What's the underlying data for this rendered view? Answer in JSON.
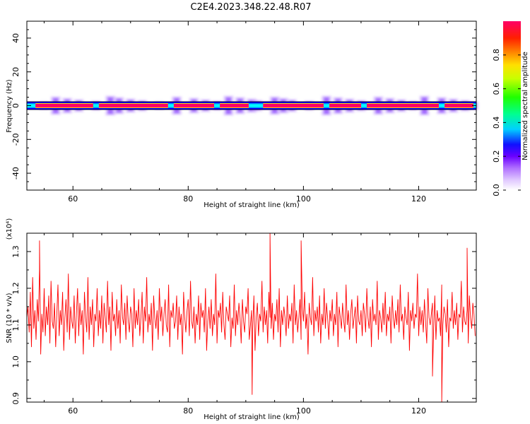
{
  "figure": {
    "title": "C2E4.2023.348.22.48.R07"
  },
  "chart_data": [
    {
      "type": "heatmap",
      "title": "C2E4.2023.348.22.48.R07",
      "xlabel": "Height of straight line (km)",
      "ylabel": "Frequency (Hz)",
      "xlim": [
        52,
        130
      ],
      "ylim": [
        -50,
        50
      ],
      "x_ticks": [
        60,
        80,
        100,
        120
      ],
      "y_ticks": [
        -40,
        -20,
        0,
        20,
        40
      ],
      "colorbar": {
        "label": "Normalized spectral amplitude",
        "range": [
          0,
          1
        ],
        "ticks": [
          0.0,
          0.2,
          0.4,
          0.6,
          0.8
        ],
        "colormap": [
          "#ffffff",
          "#cc99ff",
          "#7a00ff",
          "#0000ff",
          "#00ffff",
          "#00ff00",
          "#ffff00",
          "#ff8000",
          "#ff0000",
          "#ff0066"
        ]
      },
      "band_frequency": 0,
      "strong_segments_km": [
        [
          53.5,
          63.5
        ],
        [
          64.5,
          76.5
        ],
        [
          77.5,
          84.5
        ],
        [
          85.5,
          90.5
        ],
        [
          93,
          103.5
        ],
        [
          104.5,
          110
        ],
        [
          111,
          123.5
        ],
        [
          124.5,
          129.5
        ]
      ],
      "strong_segment_amplitude": 1.0,
      "weak_segment_amplitude": 0.4,
      "noise_peaks_km": [
        55,
        57,
        59,
        61,
        64,
        66.5,
        68,
        70,
        72,
        75,
        78,
        81,
        83,
        85,
        87,
        89,
        91,
        92,
        93.5,
        95,
        96.5,
        98,
        101,
        104,
        106,
        108,
        110,
        111.5,
        113,
        115,
        117,
        119,
        121,
        124,
        126,
        128,
        129.5
      ]
    },
    {
      "type": "line",
      "xlabel": "Height of straight line (km)",
      "ylabel": "SNR (10 * v/v)",
      "y_multiplier": "(x10⁴)",
      "xlim": [
        52,
        130
      ],
      "ylim": [
        0.89,
        1.35
      ],
      "x_ticks": [
        60,
        80,
        100,
        120
      ],
      "y_ticks": [
        0.9,
        1.0,
        1.1,
        1.2,
        1.3
      ],
      "color": "#ff0000",
      "x_start": 52,
      "x_step": 0.2,
      "spike_points": [
        [
          54.2,
          1.33
        ],
        [
          94.2,
          1.36
        ],
        [
          91.1,
          0.91
        ],
        [
          124.0,
          0.88
        ],
        [
          128.4,
          1.31
        ],
        [
          99.6,
          1.33
        ],
        [
          122.4,
          0.96
        ]
      ],
      "y": [
        1.12,
        1.15,
        1.08,
        1.19,
        1.04,
        1.23,
        1.09,
        1.14,
        1.06,
        1.17,
        1.11,
        1.25,
        1.02,
        1.13,
        1.08,
        1.2,
        1.07,
        1.15,
        1.1,
        1.18,
        1.05,
        1.22,
        1.11,
        1.09,
        1.16,
        1.04,
        1.13,
        1.21,
        1.07,
        1.14,
        1.1,
        1.19,
        1.03,
        1.12,
        1.17,
        1.08,
        1.24,
        1.06,
        1.15,
        1.11,
        1.09,
        1.18,
        1.05,
        1.13,
        1.2,
        1.07,
        1.16,
        1.1,
        1.14,
        1.02,
        1.19,
        1.12,
        1.08,
        1.23,
        1.06,
        1.15,
        1.1,
        1.17,
        1.04,
        1.13,
        1.11,
        1.2,
        1.07,
        1.14,
        1.09,
        1.18,
        1.05,
        1.16,
        1.12,
        1.08,
        1.22,
        1.1,
        1.15,
        1.03,
        1.19,
        1.11,
        1.13,
        1.07,
        1.17,
        1.09,
        1.14,
        1.05,
        1.21,
        1.12,
        1.1,
        1.16,
        1.06,
        1.18,
        1.11,
        1.08,
        1.15,
        1.13,
        1.04,
        1.2,
        1.09,
        1.14,
        1.1,
        1.17,
        1.07,
        1.12,
        1.19,
        1.05,
        1.15,
        1.11,
        1.23,
        1.08,
        1.13,
        1.1,
        1.16,
        1.03,
        1.18,
        1.12,
        1.09,
        1.14,
        1.06,
        1.2,
        1.11,
        1.15,
        1.07,
        1.13,
        1.17,
        1.1,
        1.08,
        1.21,
        1.04,
        1.14,
        1.12,
        1.16,
        1.09,
        1.11,
        1.18,
        1.06,
        1.15,
        1.1,
        1.13,
        1.02,
        1.19,
        1.12,
        1.08,
        1.14,
        1.17,
        1.07,
        1.22,
        1.11,
        1.09,
        1.15,
        1.05,
        1.13,
        1.1,
        1.18,
        1.06,
        1.16,
        1.12,
        1.14,
        1.08,
        1.2,
        1.03,
        1.11,
        1.15,
        1.09,
        1.17,
        1.07,
        1.13,
        1.1,
        1.24,
        1.05,
        1.14,
        1.12,
        1.16,
        1.08,
        1.19,
        1.1,
        1.06,
        1.15,
        1.13,
        1.11,
        1.18,
        1.04,
        1.12,
        1.09,
        1.21,
        1.07,
        1.14,
        1.1,
        1.16,
        1.12,
        1.05,
        1.17,
        1.11,
        1.08,
        1.15,
        1.13,
        1.2,
        1.06,
        1.1,
        1.14,
        1.09,
        1.18,
        1.03,
        1.12,
        1.16,
        1.07,
        1.13,
        1.11,
        1.22,
        1.08,
        1.15,
        1.1,
        1.14,
        1.05,
        1.19,
        1.12,
        1.09,
        1.16,
        1.06,
        1.13,
        1.11,
        1.17,
        1.08,
        1.2,
        1.04,
        1.14,
        1.1,
        1.15,
        1.12,
        1.07,
        1.18,
        1.09,
        1.13,
        1.11,
        1.16,
        1.05,
        1.21,
        1.1,
        1.14,
        1.08,
        1.12,
        1.17,
        1.06,
        1.15,
        1.11,
        1.19,
        1.09,
        1.13,
        1.02,
        1.16,
        1.12,
        1.1,
        1.23,
        1.07,
        1.14,
        1.11,
        1.15,
        1.08,
        1.18,
        1.05,
        1.13,
        1.1,
        1.2,
        1.09,
        1.16,
        1.12,
        1.06,
        1.14,
        1.11,
        1.17,
        1.07,
        1.13,
        1.1,
        1.19,
        1.04,
        1.15,
        1.12,
        1.09,
        1.16,
        1.11,
        1.08,
        1.21,
        1.1,
        1.14,
        1.06,
        1.13,
        1.17,
        1.09,
        1.12,
        1.15,
        1.05,
        1.18,
        1.11,
        1.1,
        1.14,
        1.07,
        1.16,
        1.13,
        1.08,
        1.2,
        1.12,
        1.09,
        1.15,
        1.04,
        1.17,
        1.11,
        1.13,
        1.1,
        1.22,
        1.06,
        1.14,
        1.12,
        1.08,
        1.16,
        1.1,
        1.19,
        1.07,
        1.13,
        1.11,
        1.15,
        1.05,
        1.18,
        1.12,
        1.09,
        1.14,
        1.1,
        1.17,
        1.08,
        1.21,
        1.11,
        1.13,
        1.06,
        1.15,
        1.12,
        1.1,
        1.19,
        1.03,
        1.14,
        1.11,
        1.16,
        1.09,
        1.13,
        1.12,
        1.24,
        1.07,
        1.15,
        1.1,
        1.14,
        1.08,
        1.17,
        1.11,
        1.05,
        1.2,
        1.12,
        1.1,
        1.13,
        1.16,
        1.09,
        1.18,
        1.06,
        1.14,
        1.11,
        1.12,
        1.07,
        1.21,
        1.1,
        1.15,
        1.13,
        1.08,
        1.17,
        1.04,
        1.12,
        1.11,
        1.19,
        1.09,
        1.14,
        1.1,
        1.16,
        1.06,
        1.13,
        1.12,
        1.22,
        1.08,
        1.15,
        1.11,
        1.1,
        1.14,
        1.05,
        1.18,
        1.12,
        1.09,
        1.16,
        1.13,
        1.07
      ]
    }
  ]
}
